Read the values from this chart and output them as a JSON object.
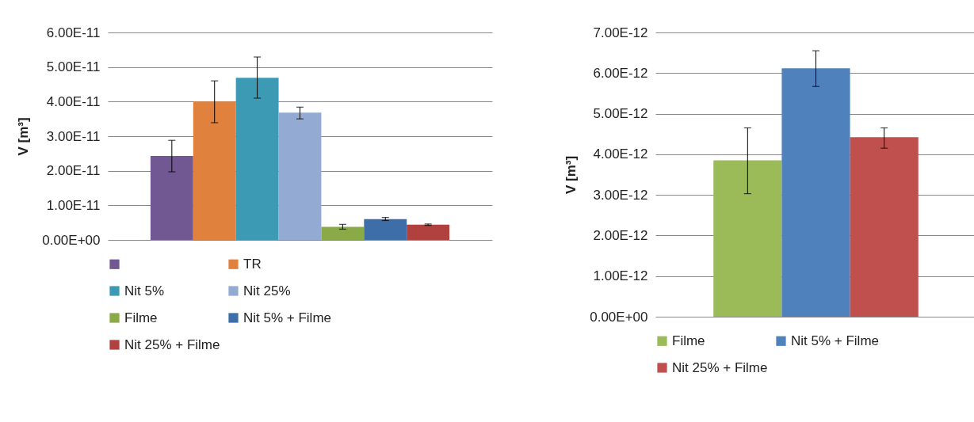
{
  "chart_data": [
    {
      "type": "bar",
      "ylabel": "V [m³]",
      "categories": [
        null
      ],
      "ylim": [
        0,
        6e-11
      ],
      "yticks": [
        {
          "value": 0,
          "label": "0.00E+00"
        },
        {
          "value": 1e-11,
          "label": "1.00E-11"
        },
        {
          "value": 2e-11,
          "label": "2.00E-11"
        },
        {
          "value": 3e-11,
          "label": "3.00E-11"
        },
        {
          "value": 4e-11,
          "label": "4.00E-11"
        },
        {
          "value": 5e-11,
          "label": "5.00E-11"
        },
        {
          "value": 6e-11,
          "label": "6.00E-11"
        }
      ],
      "grid": "y",
      "legend": "bottom",
      "series": [
        {
          "color": "#715893",
          "values": [
            2.43e-11
          ],
          "errors": [
            [
              1.97e-11,
              2.88e-11
            ]
          ]
        },
        {
          "name": "TR",
          "color": "#e0823d",
          "values": [
            4e-11
          ],
          "errors": [
            [
              3.39e-11,
              4.6e-11
            ]
          ]
        },
        {
          "name": "Nit 5%",
          "color": "#3c9ab5",
          "values": [
            4.69e-11
          ],
          "errors": [
            [
              4.1e-11,
              5.29e-11
            ]
          ]
        },
        {
          "name": "Nit 25%",
          "color": "#93abd3",
          "values": [
            3.68e-11
          ],
          "errors": [
            [
              3.5e-11,
              3.84e-11
            ]
          ]
        },
        {
          "name": "Filme",
          "color": "#8aaa48",
          "values": [
            3.8e-12
          ],
          "errors": [
            [
              3.1e-12,
              4.5e-12
            ]
          ]
        },
        {
          "name": "Nit 5% + Filme",
          "color": "#3d6ea8",
          "values": [
            6e-12
          ],
          "errors": [
            [
              5.6e-12,
              6.5e-12
            ]
          ]
        },
        {
          "name": "Nit 25% + Filme",
          "color": "#b0413e",
          "values": [
            4.4e-12
          ],
          "errors": [
            [
              4.2e-12,
              4.6e-12
            ]
          ]
        }
      ]
    },
    {
      "type": "bar",
      "ylabel": "V [m³]",
      "categories": [
        null
      ],
      "ylim": [
        0,
        7e-12
      ],
      "yticks": [
        {
          "value": 0,
          "label": "0.00E+00"
        },
        {
          "value": 1e-12,
          "label": "1.00E-12"
        },
        {
          "value": 2e-12,
          "label": "2.00E-12"
        },
        {
          "value": 3e-12,
          "label": "3.00E-12"
        },
        {
          "value": 4e-12,
          "label": "4.00E-12"
        },
        {
          "value": 5e-12,
          "label": "5.00E-12"
        },
        {
          "value": 6e-12,
          "label": "6.00E-12"
        },
        {
          "value": 7e-12,
          "label": "7.00E-12"
        }
      ],
      "grid": "y",
      "legend": "bottom",
      "series": [
        {
          "name": "Filme",
          "color": "#9bbb59",
          "values": [
            3.85e-12
          ],
          "errors": [
            [
              3.03e-12,
              4.65e-12
            ]
          ]
        },
        {
          "name": "Nit 5% + Filme",
          "color": "#4f81bd",
          "values": [
            6.12e-12
          ],
          "errors": [
            [
              5.67e-12,
              6.55e-12
            ]
          ]
        },
        {
          "name": "Nit 25% + Filme",
          "color": "#c0504d",
          "values": [
            4.42e-12
          ],
          "errors": [
            [
              4.15e-12,
              4.65e-12
            ]
          ]
        }
      ]
    }
  ]
}
